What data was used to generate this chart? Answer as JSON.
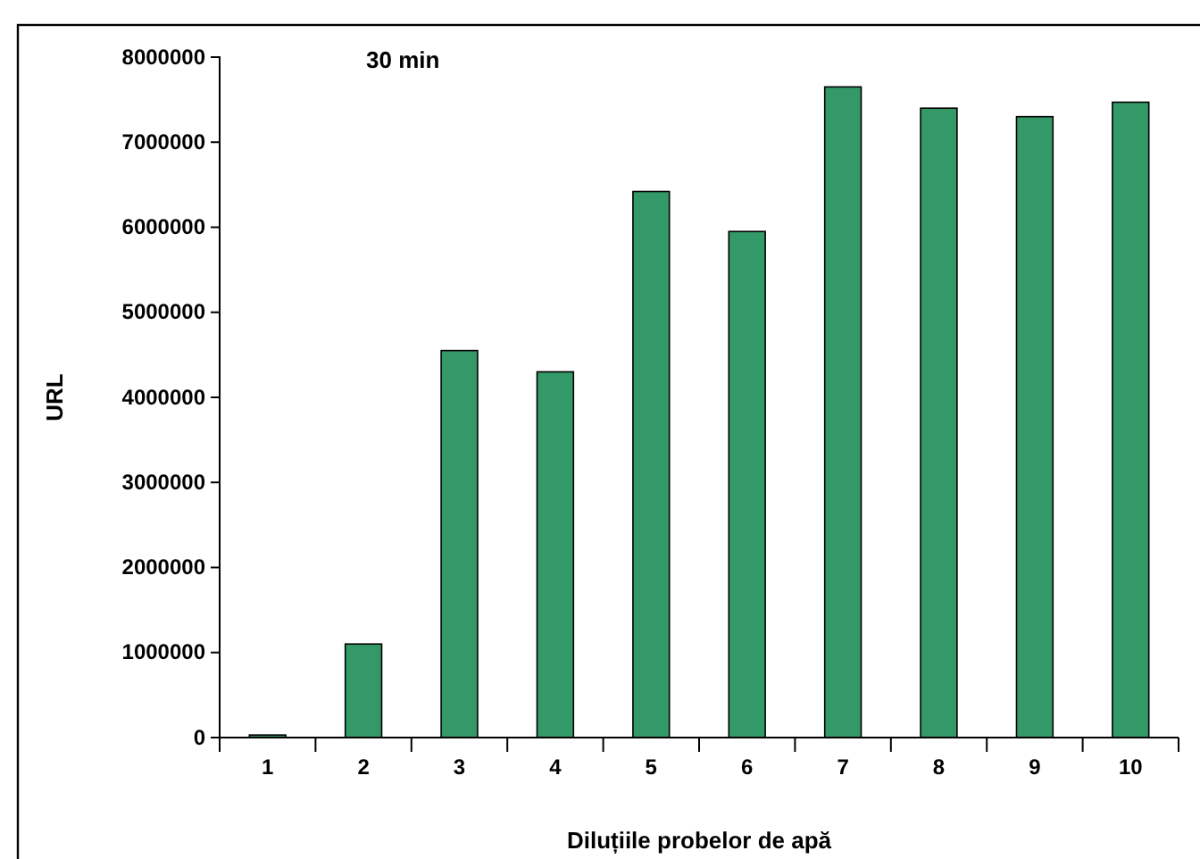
{
  "chart_data": {
    "type": "bar",
    "xlabel": "Diluțiile probelor de apă",
    "ylabel": "URL",
    "annotations": [
      "30 min"
    ],
    "categories": [
      "1",
      "2",
      "3",
      "4",
      "5",
      "6",
      "7",
      "8",
      "9",
      "10"
    ],
    "values": [
      30000,
      1100000,
      4550000,
      4300000,
      6420000,
      5950000,
      7650000,
      7400000,
      7300000,
      7470000
    ],
    "color": "#339966",
    "ylim": [
      0,
      8000000
    ],
    "yticks": [
      0,
      1000000,
      2000000,
      3000000,
      4000000,
      5000000,
      6000000,
      7000000,
      8000000
    ],
    "grid": false
  }
}
